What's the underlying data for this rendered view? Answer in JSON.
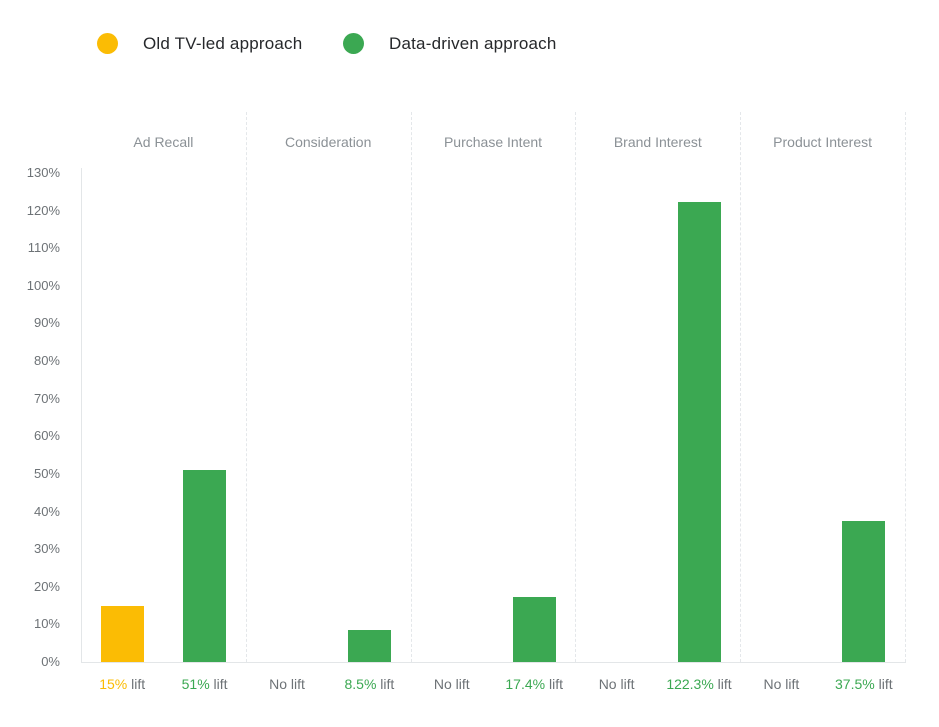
{
  "legend": {
    "items": [
      {
        "label": "Old TV-led approach",
        "color": "#FBBC04"
      },
      {
        "label": "Data-driven approach",
        "color": "#3BA852"
      }
    ]
  },
  "chart_data": {
    "type": "bar",
    "title": "",
    "categories": [
      "Ad Recall",
      "Consideration",
      "Purchase Intent",
      "Brand Interest",
      "Product Interest"
    ],
    "series": [
      {
        "name": "Old TV-led approach",
        "color": "#FBBC04",
        "values": [
          15,
          null,
          null,
          null,
          null
        ],
        "lift_labels": [
          "15% lift",
          "No lift",
          "No lift",
          "No lift",
          "No lift"
        ]
      },
      {
        "name": "Data-driven approach",
        "color": "#3BA852",
        "values": [
          51,
          8.5,
          17.4,
          122.3,
          37.5
        ],
        "lift_labels": [
          "51% lift",
          "8.5% lift",
          "17.4% lift",
          "122.3% lift",
          "37.5% lift"
        ]
      }
    ],
    "ylim": [
      0,
      130
    ],
    "ytick_step": 10,
    "ytick_labels": [
      "0%",
      "10%",
      "20%",
      "30%",
      "40%",
      "50%",
      "60%",
      "70%",
      "80%",
      "90%",
      "100%",
      "110%",
      "120%",
      "130%"
    ],
    "grid": "none",
    "column_separators": "dashed",
    "legend_position": "top-left"
  },
  "colors": {
    "background": "#ffffff",
    "category_label": "#8b9196",
    "axis_label": "#6d7276",
    "muted_label": "#6d7276",
    "plot_border": "#e3e6e8",
    "separator": "#e4e7ea",
    "legend_text": "#26282b"
  }
}
